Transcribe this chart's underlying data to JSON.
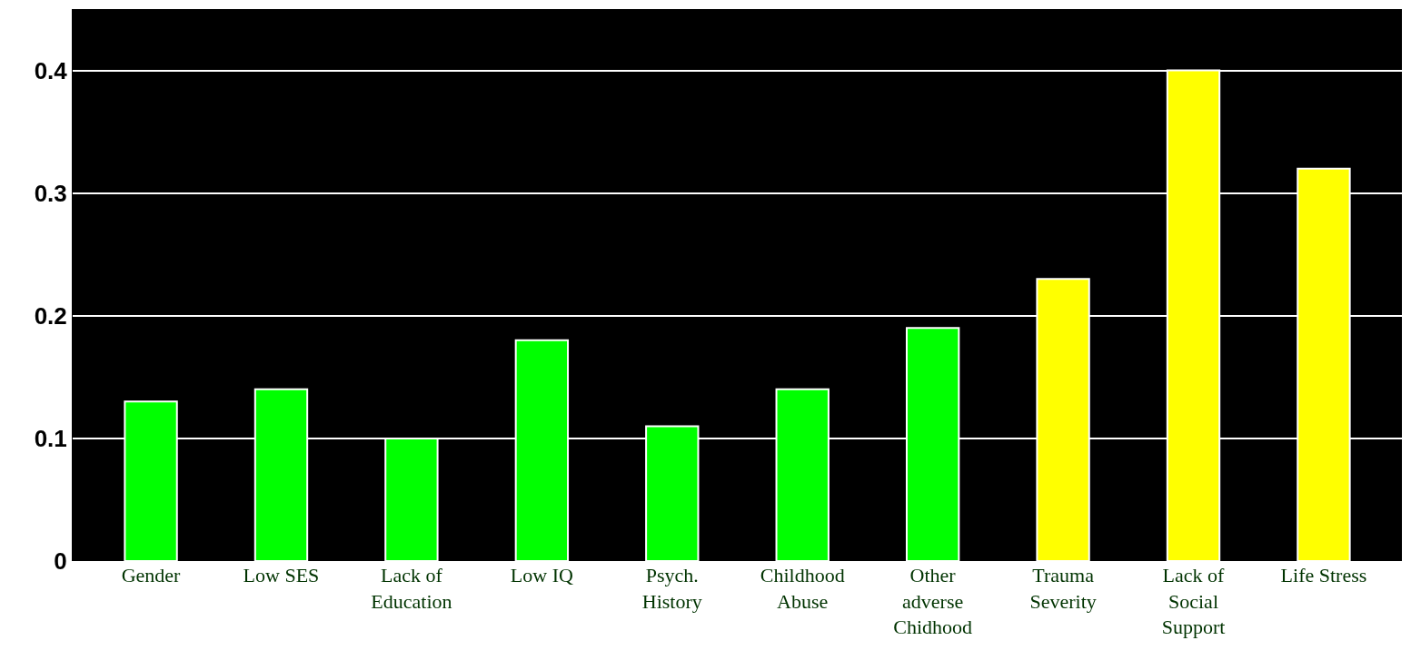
{
  "chart_data": {
    "type": "bar",
    "categories": [
      "Gender",
      "Low SES",
      "Lack of\nEducation",
      "Low IQ",
      "Psych.\nHistory",
      "Childhood\nAbuse",
      "Other\nadverse\nChidhood",
      "Trauma\nSeverity",
      "Lack of\nSocial\nSupport",
      "Life Stress"
    ],
    "values": [
      0.13,
      0.14,
      0.1,
      0.18,
      0.11,
      0.14,
      0.19,
      0.23,
      0.4,
      0.32
    ],
    "colors": [
      "#00ff00",
      "#00ff00",
      "#00ff00",
      "#00ff00",
      "#00ff00",
      "#00ff00",
      "#00ff00",
      "#ffff00",
      "#ffff00",
      "#ffff00"
    ],
    "ylim": [
      0,
      0.45
    ],
    "yticks": [
      {
        "value": 0,
        "label": "0"
      },
      0.1,
      0.2,
      0.3,
      0.4
    ],
    "grid": "y",
    "legend": false
  }
}
